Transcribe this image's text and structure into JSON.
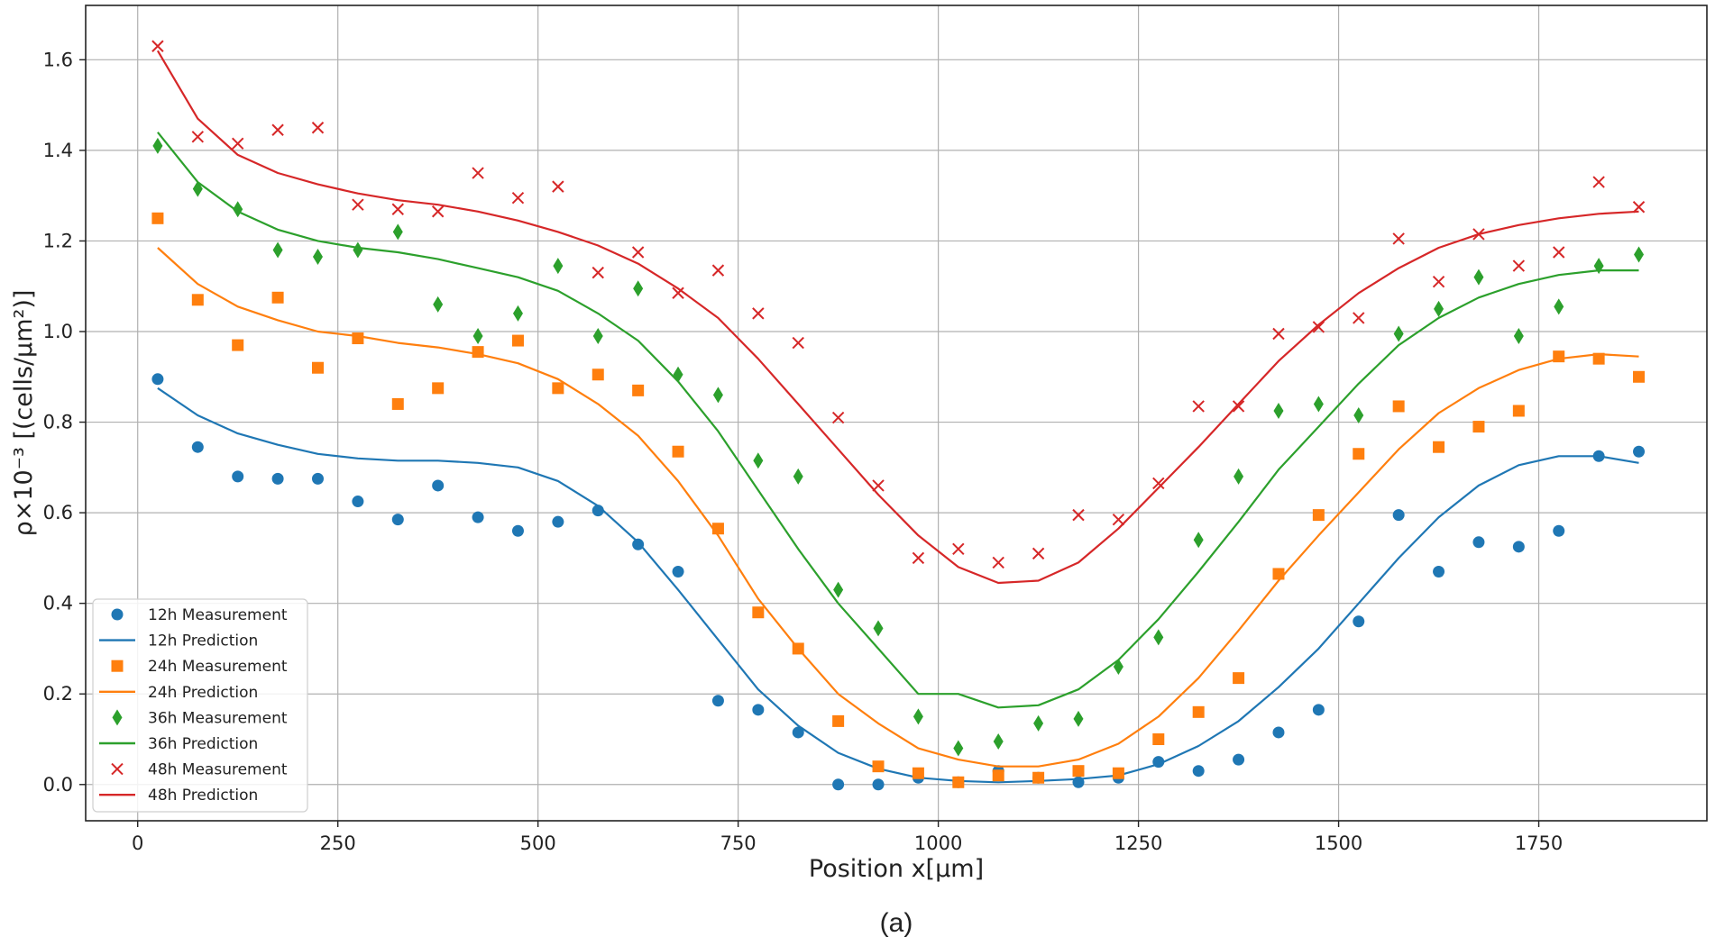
{
  "caption": "(a)",
  "chart_data": {
    "type": "line",
    "title": "",
    "xlabel": "Position x[μm]",
    "ylabel": "ρ×10⁻³ [(cells/μm²)]",
    "xlim": [
      -65,
      1960
    ],
    "ylim": [
      -0.08,
      1.72
    ],
    "xticks": [
      0,
      250,
      500,
      750,
      1000,
      1250,
      1500,
      1750
    ],
    "yticks": [
      0.0,
      0.2,
      0.4,
      0.6,
      0.8,
      1.0,
      1.2,
      1.4,
      1.6
    ],
    "xtick_labels": [
      "0",
      "250",
      "500",
      "750",
      "1000",
      "1250",
      "1500",
      "1750"
    ],
    "ytick_labels": [
      "0.0",
      "0.2",
      "0.4",
      "0.6",
      "0.8",
      "1.0",
      "1.2",
      "1.4",
      "1.6"
    ],
    "grid": true,
    "legend_position": "bottom-left",
    "x": [
      25,
      75,
      125,
      175,
      225,
      275,
      325,
      375,
      425,
      475,
      525,
      575,
      625,
      675,
      725,
      775,
      825,
      875,
      925,
      975,
      1025,
      1075,
      1125,
      1175,
      1225,
      1275,
      1325,
      1375,
      1425,
      1475,
      1525,
      1575,
      1625,
      1675,
      1725,
      1775,
      1825,
      1875
    ],
    "series": [
      {
        "name": "12h Measurement",
        "kind": "scatter",
        "marker": "circle",
        "color": "#1f77b4",
        "values": [
          0.895,
          0.745,
          0.68,
          0.675,
          0.675,
          0.625,
          0.585,
          0.66,
          0.59,
          0.56,
          0.58,
          0.605,
          0.53,
          0.47,
          0.185,
          0.165,
          0.115,
          0.0,
          0.0,
          0.015,
          0.005,
          0.03,
          0.015,
          0.005,
          0.015,
          0.05,
          0.03,
          0.055,
          0.115,
          0.165,
          0.36,
          0.595,
          0.47,
          0.535,
          0.525,
          0.56,
          0.725,
          0.735
        ]
      },
      {
        "name": "12h Prediction",
        "kind": "line",
        "color": "#1f77b4",
        "values": [
          0.875,
          0.815,
          0.775,
          0.75,
          0.73,
          0.72,
          0.715,
          0.715,
          0.71,
          0.7,
          0.67,
          0.615,
          0.535,
          0.43,
          0.32,
          0.21,
          0.13,
          0.07,
          0.035,
          0.015,
          0.008,
          0.005,
          0.008,
          0.012,
          0.02,
          0.045,
          0.085,
          0.14,
          0.215,
          0.3,
          0.4,
          0.5,
          0.59,
          0.66,
          0.705,
          0.725,
          0.725,
          0.71
        ]
      },
      {
        "name": "24h Measurement",
        "kind": "scatter",
        "marker": "square",
        "color": "#ff7f0e",
        "values": [
          1.25,
          1.07,
          0.97,
          1.075,
          0.92,
          0.985,
          0.84,
          0.875,
          0.955,
          0.98,
          0.875,
          0.905,
          0.87,
          0.735,
          0.565,
          0.38,
          0.3,
          0.14,
          0.04,
          0.025,
          0.005,
          0.02,
          0.015,
          0.03,
          0.025,
          0.1,
          0.16,
          0.235,
          0.465,
          0.595,
          0.73,
          0.835,
          0.745,
          0.79,
          0.825,
          0.945,
          0.94,
          0.9
        ]
      },
      {
        "name": "24h Prediction",
        "kind": "line",
        "color": "#ff7f0e",
        "values": [
          1.185,
          1.105,
          1.055,
          1.025,
          1.0,
          0.99,
          0.975,
          0.965,
          0.95,
          0.93,
          0.895,
          0.84,
          0.77,
          0.67,
          0.55,
          0.41,
          0.3,
          0.2,
          0.135,
          0.08,
          0.055,
          0.04,
          0.04,
          0.055,
          0.09,
          0.15,
          0.235,
          0.34,
          0.45,
          0.55,
          0.645,
          0.74,
          0.82,
          0.875,
          0.915,
          0.94,
          0.95,
          0.945
        ]
      },
      {
        "name": "36h Measurement",
        "kind": "scatter",
        "marker": "diamond",
        "color": "#2ca02c",
        "values": [
          1.41,
          1.315,
          1.27,
          1.18,
          1.165,
          1.18,
          1.22,
          1.06,
          0.99,
          1.04,
          1.145,
          0.99,
          1.095,
          0.905,
          0.86,
          0.715,
          0.68,
          0.43,
          0.345,
          0.15,
          0.08,
          0.095,
          0.135,
          0.145,
          0.26,
          0.325,
          0.54,
          0.68,
          0.825,
          0.84,
          0.815,
          0.995,
          1.05,
          1.12,
          0.99,
          1.055,
          1.145,
          1.17
        ]
      },
      {
        "name": "36h Prediction",
        "kind": "line",
        "color": "#2ca02c",
        "values": [
          1.44,
          1.33,
          1.265,
          1.225,
          1.2,
          1.185,
          1.175,
          1.16,
          1.14,
          1.12,
          1.09,
          1.04,
          0.98,
          0.89,
          0.78,
          0.65,
          0.52,
          0.4,
          0.3,
          0.2,
          0.2,
          0.17,
          0.175,
          0.21,
          0.275,
          0.365,
          0.47,
          0.58,
          0.695,
          0.79,
          0.885,
          0.97,
          1.03,
          1.075,
          1.105,
          1.125,
          1.135,
          1.135
        ]
      },
      {
        "name": "48h Measurement",
        "kind": "scatter",
        "marker": "x",
        "color": "#d62728",
        "values": [
          1.63,
          1.43,
          1.415,
          1.445,
          1.45,
          1.28,
          1.27,
          1.265,
          1.35,
          1.295,
          1.32,
          1.13,
          1.175,
          1.085,
          1.135,
          1.04,
          0.975,
          0.81,
          0.66,
          0.5,
          0.52,
          0.49,
          0.51,
          0.595,
          0.585,
          0.665,
          0.835,
          0.835,
          0.995,
          1.01,
          1.03,
          1.205,
          1.11,
          1.215,
          1.145,
          1.175,
          1.33,
          1.275
        ]
      },
      {
        "name": "48h Prediction",
        "kind": "line",
        "color": "#d62728",
        "values": [
          1.62,
          1.47,
          1.39,
          1.35,
          1.325,
          1.305,
          1.29,
          1.28,
          1.265,
          1.245,
          1.22,
          1.19,
          1.15,
          1.095,
          1.03,
          0.94,
          0.84,
          0.74,
          0.64,
          0.55,
          0.48,
          0.445,
          0.45,
          0.49,
          0.565,
          0.655,
          0.745,
          0.84,
          0.935,
          1.015,
          1.085,
          1.14,
          1.185,
          1.215,
          1.235,
          1.25,
          1.26,
          1.265
        ]
      }
    ]
  }
}
